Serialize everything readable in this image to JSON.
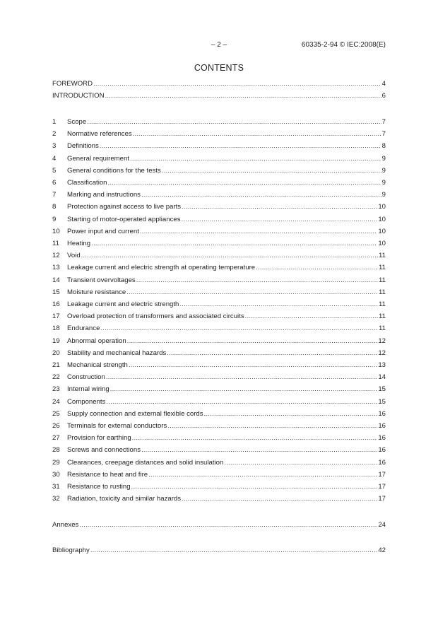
{
  "header": {
    "page_number": "– 2 –",
    "standard": "60335-2-94 © IEC:2008(E)"
  },
  "title": "CONTENTS",
  "front": [
    {
      "label": "FOREWORD",
      "page": "4"
    },
    {
      "label": "INTRODUCTION",
      "page": "6"
    }
  ],
  "clauses": [
    {
      "num": "1",
      "label": "Scope",
      "page": "7"
    },
    {
      "num": "2",
      "label": "Normative references",
      "page": "7"
    },
    {
      "num": "3",
      "label": "Definitions",
      "page": "8"
    },
    {
      "num": "4",
      "label": "General requirement",
      "page": "9"
    },
    {
      "num": "5",
      "label": "General conditions for the tests",
      "page": "9"
    },
    {
      "num": "6",
      "label": "Classification",
      "page": "9"
    },
    {
      "num": "7",
      "label": "Marking and instructions",
      "page": "9"
    },
    {
      "num": "8",
      "label": "Protection against access to live parts",
      "page": "10"
    },
    {
      "num": "9",
      "label": "Starting of motor-operated appliances",
      "page": "10"
    },
    {
      "num": "10",
      "label": "Power input and current",
      "page": "10"
    },
    {
      "num": "11",
      "label": "Heating",
      "page": "10"
    },
    {
      "num": "12",
      "label": "Void",
      "page": "11"
    },
    {
      "num": "13",
      "label": "Leakage current and electric strength at operating temperature",
      "page": "11"
    },
    {
      "num": "14",
      "label": "Transient overvoltages",
      "page": "11"
    },
    {
      "num": "15",
      "label": "Moisture resistance",
      "page": "11"
    },
    {
      "num": "16",
      "label": "Leakage current and electric strength",
      "page": "11"
    },
    {
      "num": "17",
      "label": "Overload protection of transformers and associated circuits",
      "page": "11"
    },
    {
      "num": "18",
      "label": "Endurance",
      "page": "11"
    },
    {
      "num": "19",
      "label": "Abnormal operation",
      "page": "12"
    },
    {
      "num": "20",
      "label": "Stability and mechanical hazards",
      "page": "12"
    },
    {
      "num": "21",
      "label": "Mechanical strength",
      "page": "13"
    },
    {
      "num": "22",
      "label": "Construction",
      "page": "14"
    },
    {
      "num": "23",
      "label": "Internal wiring",
      "page": "15"
    },
    {
      "num": "24",
      "label": "Components",
      "page": "15"
    },
    {
      "num": "25",
      "label": "Supply connection and external flexible cords",
      "page": "16"
    },
    {
      "num": "26",
      "label": "Terminals for external conductors",
      "page": "16"
    },
    {
      "num": "27",
      "label": "Provision for earthing",
      "page": "16"
    },
    {
      "num": "28",
      "label": "Screws and connections",
      "page": "16"
    },
    {
      "num": "29",
      "label": "Clearances, creepage distances and solid insulation",
      "page": "16"
    },
    {
      "num": "30",
      "label": "Resistance to heat and fire",
      "page": "17"
    },
    {
      "num": "31",
      "label": "Resistance to rusting",
      "page": "17"
    },
    {
      "num": "32",
      "label": "Radiation, toxicity and similar hazards",
      "page": "17"
    }
  ],
  "back": [
    {
      "label": "Annexes",
      "page": "24"
    },
    {
      "label": "Bibliography",
      "page": "42"
    }
  ]
}
